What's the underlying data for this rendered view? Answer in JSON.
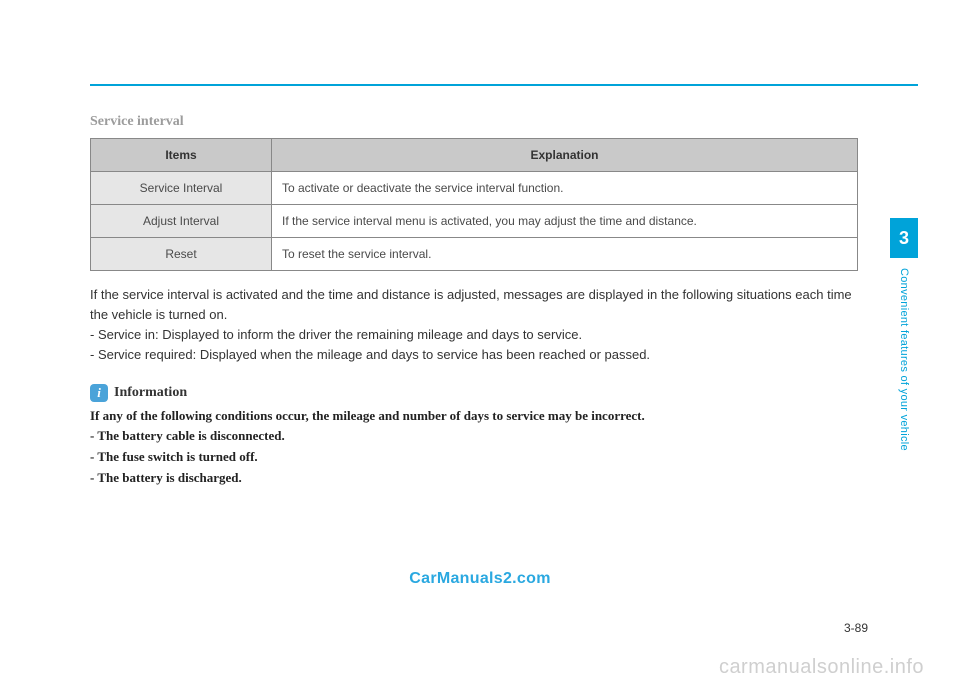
{
  "section_title": "Service interval",
  "table": {
    "headers": {
      "items": "Items",
      "explanation": "Explanation"
    },
    "rows": [
      {
        "item": "Service Interval",
        "explanation": "To activate or deactivate the service interval function."
      },
      {
        "item": "Adjust Interval",
        "explanation": "If the service interval menu is activated, you may adjust the time and distance."
      },
      {
        "item": "Reset",
        "explanation": "To reset the service interval."
      }
    ]
  },
  "body": {
    "intro": "If the service interval is activated and the time and distance is adjusted, messages are displayed in the following situations each time the vehicle is turned on.",
    "bullets": [
      "- Service in: Displayed to inform the driver the remaining mileage and days to service.",
      "- Service required: Displayed when the mileage and days to service has been reached or passed."
    ]
  },
  "info": {
    "heading": "Information",
    "lead": "If any of the following conditions occur, the mileage and number of days to service may be incorrect.",
    "items": [
      "- The battery cable is disconnected.",
      "- The fuse switch is turned off.",
      "- The battery is discharged."
    ]
  },
  "watermark_center": "CarManuals2.com",
  "page_number": "3-89",
  "footer_domain": "carmanualsonline.info",
  "side": {
    "chapter": "3",
    "label": "Convenient features of your vehicle"
  },
  "colors": {
    "accent": "#00a3d9",
    "header_bg": "#c9c9c9",
    "item_bg": "#e6e6e6",
    "footer_gray": "#cfcfcf"
  }
}
